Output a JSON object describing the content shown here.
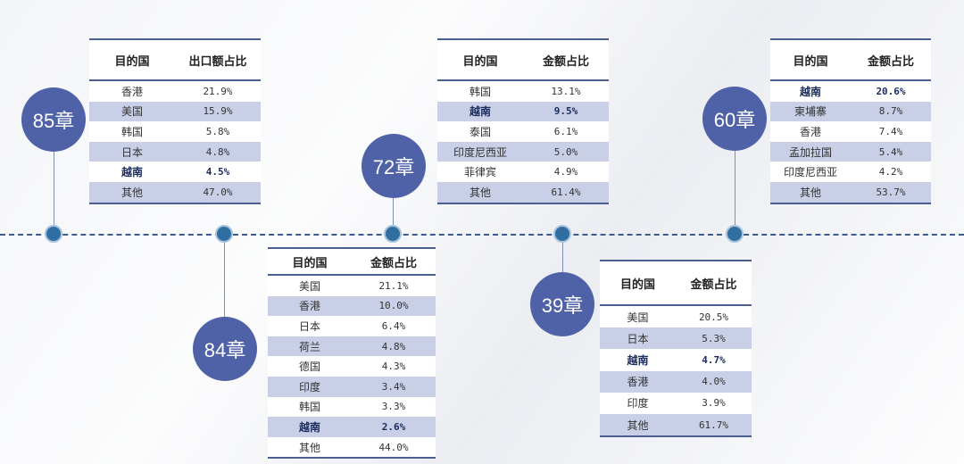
{
  "groups": [
    {
      "label": "85章",
      "header": [
        "目的国",
        "出口额占比"
      ],
      "rows": [
        [
          "香港",
          "21.9%"
        ],
        [
          "美国",
          "15.9%"
        ],
        [
          "韩国",
          "5.8%"
        ],
        [
          "日本",
          "4.8%"
        ],
        [
          "越南",
          "4.5%"
        ],
        [
          "其他",
          "47.0%"
        ]
      ],
      "highlight_row": 4
    },
    {
      "label": "84章",
      "header": [
        "目的国",
        "金额占比"
      ],
      "rows": [
        [
          "美国",
          "21.1%"
        ],
        [
          "香港",
          "10.0%"
        ],
        [
          "日本",
          "6.4%"
        ],
        [
          "荷兰",
          "4.8%"
        ],
        [
          "德国",
          "4.3%"
        ],
        [
          "印度",
          "3.4%"
        ],
        [
          "韩国",
          "3.3%"
        ],
        [
          "越南",
          "2.6%"
        ],
        [
          "其他",
          "44.0%"
        ]
      ],
      "highlight_row": 7
    },
    {
      "label": "72章",
      "header": [
        "目的国",
        "金额占比"
      ],
      "rows": [
        [
          "韩国",
          "13.1%"
        ],
        [
          "越南",
          "9.5%"
        ],
        [
          "泰国",
          "6.1%"
        ],
        [
          "印度尼西亚",
          "5.0%"
        ],
        [
          "菲律宾",
          "4.9%"
        ],
        [
          "其他",
          "61.4%"
        ]
      ],
      "highlight_row": 1
    },
    {
      "label": "39章",
      "header": [
        "目的国",
        "金额占比"
      ],
      "rows": [
        [
          "美国",
          "20.5%"
        ],
        [
          "日本",
          "5.3%"
        ],
        [
          "越南",
          "4.7%"
        ],
        [
          "香港",
          "4.0%"
        ],
        [
          "印度",
          "3.9%"
        ],
        [
          "其他",
          "61.7%"
        ]
      ],
      "highlight_row": 2
    },
    {
      "label": "60章",
      "header": [
        "目的国",
        "金额占比"
      ],
      "rows": [
        [
          "越南",
          "20.6%"
        ],
        [
          "柬埔寨",
          "8.7%"
        ],
        [
          "香港",
          "7.4%"
        ],
        [
          "孟加拉国",
          "5.4%"
        ],
        [
          "印度尼西亚",
          "4.2%"
        ],
        [
          "其他",
          "53.7%"
        ]
      ],
      "highlight_row": 0
    }
  ],
  "colors": {
    "badge": "#4f62a7",
    "row_alt": "#c8cfe6",
    "rule": "#4a5e8f"
  }
}
